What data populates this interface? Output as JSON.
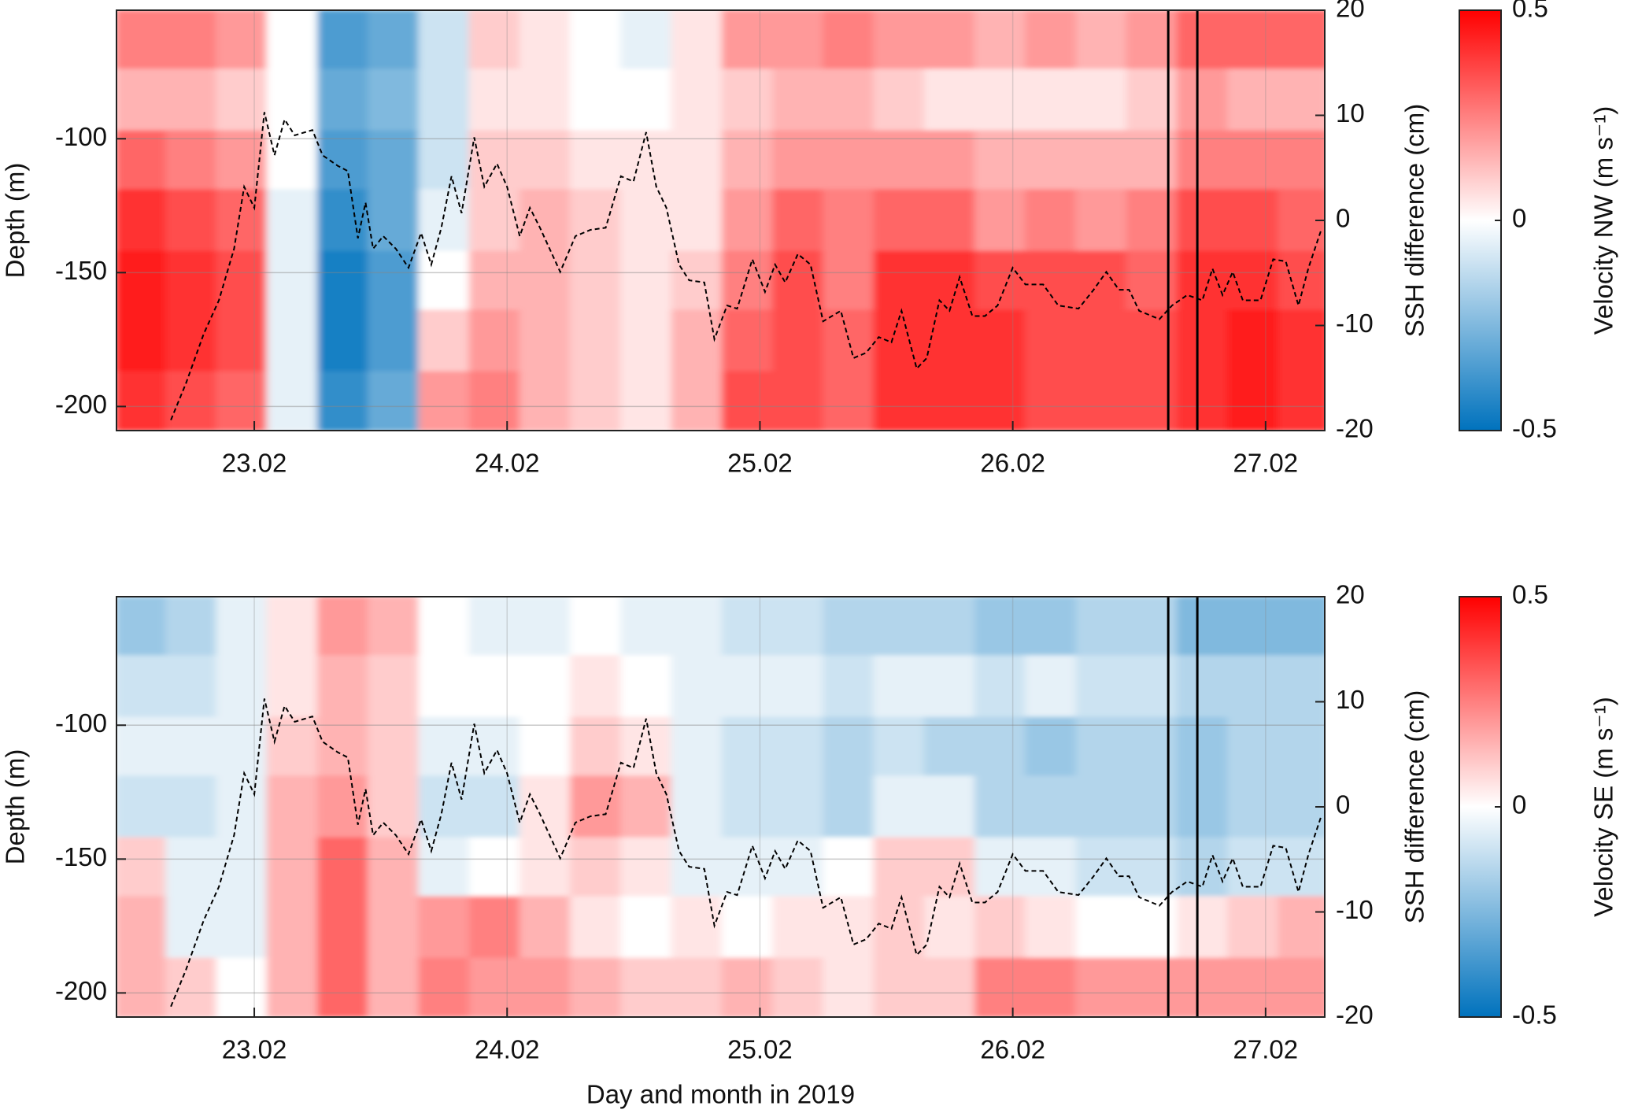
{
  "chart_data": [
    {
      "type": "heatmap",
      "x_edges": [
        22.45,
        22.65,
        22.85,
        23.05,
        23.25,
        23.45,
        23.65,
        23.85,
        24.05,
        24.25,
        24.45,
        24.65,
        24.85,
        25.05,
        25.25,
        25.45,
        25.65,
        25.85,
        26.05,
        26.25,
        26.45,
        26.65,
        26.85,
        27.05,
        27.25
      ],
      "y_edges": [
        -52,
        -74,
        -97,
        -119,
        -142,
        -164,
        -187,
        -209
      ],
      "z": [
        [
          0.25,
          0.25,
          0.2,
          0.0,
          -0.35,
          -0.3,
          -0.1,
          0.1,
          0.05,
          0.0,
          -0.05,
          0.05,
          0.2,
          0.2,
          0.25,
          0.2,
          0.2,
          0.15,
          0.2,
          0.15,
          0.2,
          0.3,
          0.3,
          0.3
        ],
        [
          0.15,
          0.15,
          0.1,
          0.0,
          -0.3,
          -0.25,
          -0.1,
          0.05,
          0.05,
          0.0,
          0.0,
          0.05,
          0.1,
          0.15,
          0.15,
          0.1,
          0.05,
          0.05,
          0.05,
          0.05,
          0.1,
          0.2,
          0.15,
          0.15
        ],
        [
          0.3,
          0.25,
          0.2,
          0.0,
          -0.35,
          -0.3,
          -0.1,
          0.1,
          0.1,
          0.05,
          0.05,
          0.05,
          0.15,
          0.2,
          0.2,
          0.2,
          0.2,
          0.15,
          0.15,
          0.15,
          0.15,
          0.25,
          0.25,
          0.25
        ],
        [
          0.4,
          0.35,
          0.3,
          -0.05,
          -0.4,
          -0.3,
          -0.05,
          0.1,
          0.15,
          0.1,
          0.05,
          0.05,
          0.2,
          0.3,
          0.25,
          0.3,
          0.3,
          0.2,
          0.25,
          0.2,
          0.25,
          0.35,
          0.35,
          0.3
        ],
        [
          0.45,
          0.4,
          0.35,
          -0.05,
          -0.45,
          -0.35,
          0.0,
          0.15,
          0.15,
          0.1,
          0.05,
          0.1,
          0.25,
          0.35,
          0.25,
          0.4,
          0.4,
          0.35,
          0.35,
          0.35,
          0.3,
          0.4,
          0.4,
          0.35
        ],
        [
          0.45,
          0.4,
          0.35,
          -0.05,
          -0.45,
          -0.35,
          0.1,
          0.2,
          0.15,
          0.1,
          0.05,
          0.15,
          0.3,
          0.35,
          0.3,
          0.4,
          0.4,
          0.4,
          0.35,
          0.35,
          0.35,
          0.4,
          0.45,
          0.4
        ],
        [
          0.4,
          0.35,
          0.3,
          -0.05,
          -0.4,
          -0.3,
          0.2,
          0.25,
          0.15,
          0.1,
          0.05,
          0.15,
          0.35,
          0.35,
          0.3,
          0.4,
          0.4,
          0.4,
          0.35,
          0.35,
          0.35,
          0.4,
          0.45,
          0.4
        ]
      ],
      "colormap": [
        "#0072bd",
        "#ffffff",
        "#ff0000"
      ],
      "clim": [
        -0.5,
        0.5
      ],
      "cticks": [
        -0.5,
        0,
        0.5
      ],
      "colorbar_label": "Velocity NW (m s⁻¹)",
      "xlim": [
        22.455,
        27.234
      ],
      "xticks": [
        {
          "value": 23,
          "label": "23.02"
        },
        {
          "value": 24,
          "label": "24.02"
        },
        {
          "value": 25,
          "label": "25.02"
        },
        {
          "value": 26,
          "label": "26.02"
        },
        {
          "value": 27,
          "label": "27.02"
        }
      ],
      "ylim": [
        -209,
        -52
      ],
      "yticks": [
        -100,
        -150,
        -200
      ],
      "ylabel": "Depth (m)",
      "y2lim": [
        -20,
        20
      ],
      "y2ticks": [
        20,
        10,
        0,
        -10,
        -20
      ],
      "y2label": "SSH difference (cm)",
      "grid": true,
      "vlines": [
        26.615,
        26.73
      ],
      "line": {
        "axis": "y2",
        "color": "#000000",
        "dashed": true,
        "x": [
          22.67,
          22.73,
          22.8,
          22.86,
          22.92,
          22.96,
          23.0,
          23.04,
          23.08,
          23.12,
          23.16,
          23.23,
          23.27,
          23.33,
          23.37,
          23.41,
          23.44,
          23.47,
          23.51,
          23.56,
          23.61,
          23.66,
          23.7,
          23.74,
          23.78,
          23.82,
          23.87,
          23.91,
          23.96,
          24.0,
          24.05,
          24.09,
          24.13,
          24.21,
          24.27,
          24.33,
          24.39,
          24.45,
          24.5,
          24.55,
          24.59,
          24.63,
          24.68,
          24.72,
          24.78,
          24.82,
          24.87,
          24.91,
          24.97,
          25.02,
          25.06,
          25.1,
          25.15,
          25.2,
          25.25,
          25.32,
          25.37,
          25.42,
          25.47,
          25.52,
          25.56,
          25.62,
          25.66,
          25.71,
          25.75,
          25.79,
          25.84,
          25.89,
          25.94,
          26.0,
          26.05,
          26.12,
          26.18,
          26.26,
          26.32,
          26.37,
          26.42,
          26.46,
          26.5,
          26.58,
          26.63,
          26.69,
          26.75,
          26.79,
          26.83,
          26.87,
          26.91,
          26.98,
          27.03,
          27.08,
          27.13,
          27.17,
          27.22
        ],
        "values": [
          -19,
          -15.5,
          -10.8,
          -7.6,
          -2.7,
          3.2,
          1.2,
          10.3,
          6.2,
          9.6,
          8.1,
          8.6,
          6.2,
          5.2,
          4.7,
          -1.7,
          1.7,
          -2.7,
          -1.5,
          -2.7,
          -4.5,
          -1.2,
          -4.2,
          -0.7,
          4.2,
          0.7,
          7.9,
          3.2,
          5.4,
          3.2,
          -1.5,
          1.2,
          -0.7,
          -4.9,
          -1.5,
          -0.9,
          -0.7,
          4.2,
          3.7,
          8.4,
          3.2,
          1.2,
          -4.2,
          -5.7,
          -5.9,
          -11.3,
          -8.1,
          -8.4,
          -3.7,
          -6.8,
          -4.2,
          -5.9,
          -3.2,
          -4.2,
          -9.6,
          -8.6,
          -13.1,
          -12.6,
          -11.1,
          -11.6,
          -8.6,
          -14.1,
          -13.1,
          -7.6,
          -8.6,
          -5.4,
          -9.1,
          -9.1,
          -8.1,
          -4.5,
          -6.1,
          -6.1,
          -8.1,
          -8.4,
          -6.6,
          -4.9,
          -6.6,
          -6.6,
          -8.6,
          -9.4,
          -8.1,
          -7.1,
          -7.6,
          -4.6,
          -7.1,
          -4.9,
          -7.6,
          -7.6,
          -3.7,
          -3.9,
          -8.1,
          -4.5,
          -0.9
        ]
      }
    },
    {
      "type": "heatmap",
      "x_edges": [
        22.45,
        22.65,
        22.85,
        23.05,
        23.25,
        23.45,
        23.65,
        23.85,
        24.05,
        24.25,
        24.45,
        24.65,
        24.85,
        25.05,
        25.25,
        25.45,
        25.65,
        25.85,
        26.05,
        26.25,
        26.45,
        26.65,
        26.85,
        27.05,
        27.25
      ],
      "y_edges": [
        -52,
        -74,
        -97,
        -119,
        -142,
        -164,
        -187,
        -209
      ],
      "z": [
        [
          -0.2,
          -0.15,
          -0.05,
          0.05,
          0.2,
          0.15,
          0.0,
          -0.05,
          -0.05,
          0.0,
          -0.05,
          -0.05,
          -0.1,
          -0.1,
          -0.15,
          -0.15,
          -0.15,
          -0.2,
          -0.2,
          -0.15,
          -0.15,
          -0.25,
          -0.25,
          -0.25
        ],
        [
          -0.1,
          -0.1,
          -0.05,
          0.05,
          0.15,
          0.1,
          0.0,
          0.0,
          0.0,
          0.05,
          0.0,
          -0.05,
          -0.05,
          -0.05,
          -0.1,
          -0.05,
          -0.05,
          -0.1,
          -0.05,
          -0.1,
          -0.1,
          -0.15,
          -0.15,
          -0.15
        ],
        [
          -0.05,
          -0.05,
          -0.05,
          0.1,
          0.15,
          0.1,
          -0.05,
          -0.05,
          0.0,
          0.1,
          0.05,
          -0.05,
          -0.1,
          -0.1,
          -0.15,
          -0.1,
          -0.15,
          -0.15,
          -0.2,
          -0.15,
          -0.15,
          -0.2,
          -0.15,
          -0.15
        ],
        [
          -0.1,
          -0.1,
          -0.05,
          0.15,
          0.2,
          0.1,
          -0.1,
          -0.1,
          0.05,
          0.2,
          0.15,
          -0.05,
          -0.1,
          -0.1,
          -0.15,
          -0.05,
          -0.05,
          -0.15,
          -0.15,
          -0.15,
          -0.15,
          -0.2,
          -0.15,
          -0.15
        ],
        [
          0.1,
          -0.05,
          -0.05,
          0.15,
          0.3,
          0.15,
          -0.05,
          0.0,
          0.05,
          0.1,
          0.05,
          -0.05,
          -0.05,
          -0.05,
          0.0,
          0.1,
          0.1,
          -0.05,
          -0.05,
          -0.1,
          -0.1,
          -0.15,
          -0.1,
          -0.1
        ],
        [
          0.15,
          -0.05,
          -0.05,
          0.15,
          0.3,
          0.15,
          0.2,
          0.25,
          0.15,
          0.05,
          0.0,
          0.05,
          0.0,
          0.05,
          0.05,
          0.1,
          0.05,
          0.1,
          0.05,
          0.0,
          0.0,
          0.05,
          0.1,
          0.15
        ],
        [
          0.15,
          0.1,
          0.0,
          0.15,
          0.3,
          0.15,
          0.25,
          0.2,
          0.2,
          0.15,
          0.1,
          0.1,
          0.15,
          0.1,
          0.05,
          0.1,
          0.1,
          0.25,
          0.25,
          0.2,
          0.2,
          0.2,
          0.2,
          0.2
        ]
      ],
      "colormap": [
        "#0072bd",
        "#ffffff",
        "#ff0000"
      ],
      "clim": [
        -0.5,
        0.5
      ],
      "cticks": [
        -0.5,
        0,
        0.5
      ],
      "colorbar_label": "Velocity SE (m s⁻¹)",
      "xlim": [
        22.455,
        27.234
      ],
      "xticks": [
        {
          "value": 23,
          "label": "23.02"
        },
        {
          "value": 24,
          "label": "24.02"
        },
        {
          "value": 25,
          "label": "25.02"
        },
        {
          "value": 26,
          "label": "26.02"
        },
        {
          "value": 27,
          "label": "27.02"
        }
      ],
      "xlabel": "Day and month in 2019",
      "ylim": [
        -209,
        -52
      ],
      "yticks": [
        -100,
        -150,
        -200
      ],
      "ylabel": "Depth (m)",
      "y2lim": [
        -20,
        20
      ],
      "y2ticks": [
        20,
        10,
        0,
        -10,
        -20
      ],
      "y2label": "SSH difference (cm)",
      "grid": true,
      "vlines": [
        26.615,
        26.73
      ],
      "line": {
        "axis": "y2",
        "color": "#000000",
        "dashed": true,
        "x": [
          22.67,
          22.73,
          22.8,
          22.86,
          22.92,
          22.96,
          23.0,
          23.04,
          23.08,
          23.12,
          23.16,
          23.23,
          23.27,
          23.33,
          23.37,
          23.41,
          23.44,
          23.47,
          23.51,
          23.56,
          23.61,
          23.66,
          23.7,
          23.74,
          23.78,
          23.82,
          23.87,
          23.91,
          23.96,
          24.0,
          24.05,
          24.09,
          24.13,
          24.21,
          24.27,
          24.33,
          24.39,
          24.45,
          24.5,
          24.55,
          24.59,
          24.63,
          24.68,
          24.72,
          24.78,
          24.82,
          24.87,
          24.91,
          24.97,
          25.02,
          25.06,
          25.1,
          25.15,
          25.2,
          25.25,
          25.32,
          25.37,
          25.42,
          25.47,
          25.52,
          25.56,
          25.62,
          25.66,
          25.71,
          25.75,
          25.79,
          25.84,
          25.89,
          25.94,
          26.0,
          26.05,
          26.12,
          26.18,
          26.26,
          26.32,
          26.37,
          26.42,
          26.46,
          26.5,
          26.58,
          26.63,
          26.69,
          26.75,
          26.79,
          26.83,
          26.87,
          26.91,
          26.98,
          27.03,
          27.08,
          27.13,
          27.17,
          27.22
        ],
        "values": [
          -19,
          -15.5,
          -10.8,
          -7.6,
          -2.7,
          3.2,
          1.2,
          10.3,
          6.2,
          9.6,
          8.1,
          8.6,
          6.2,
          5.2,
          4.7,
          -1.7,
          1.7,
          -2.7,
          -1.5,
          -2.7,
          -4.5,
          -1.2,
          -4.2,
          -0.7,
          4.2,
          0.7,
          7.9,
          3.2,
          5.4,
          3.2,
          -1.5,
          1.2,
          -0.7,
          -4.9,
          -1.5,
          -0.9,
          -0.7,
          4.2,
          3.7,
          8.4,
          3.2,
          1.2,
          -4.2,
          -5.7,
          -5.9,
          -11.3,
          -8.1,
          -8.4,
          -3.7,
          -6.8,
          -4.2,
          -5.9,
          -3.2,
          -4.2,
          -9.6,
          -8.6,
          -13.1,
          -12.6,
          -11.1,
          -11.6,
          -8.6,
          -14.1,
          -13.1,
          -7.6,
          -8.6,
          -5.4,
          -9.1,
          -9.1,
          -8.1,
          -4.5,
          -6.1,
          -6.1,
          -8.1,
          -8.4,
          -6.6,
          -4.9,
          -6.6,
          -6.6,
          -8.6,
          -9.4,
          -8.1,
          -7.1,
          -7.6,
          -4.6,
          -7.1,
          -4.9,
          -7.6,
          -7.6,
          -3.7,
          -3.9,
          -8.1,
          -4.5,
          -0.9
        ]
      }
    }
  ]
}
